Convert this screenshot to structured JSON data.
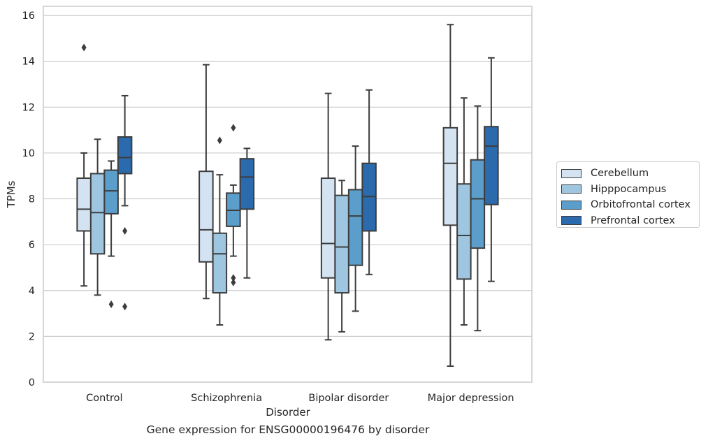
{
  "chart_data": {
    "type": "box",
    "title": "",
    "xlabel": "Disorder",
    "ylabel": "TPMs",
    "caption": "Gene expression for ENSG00000196476 by disorder",
    "ylim": [
      0,
      16.4
    ],
    "yticks": [
      0,
      2,
      4,
      6,
      8,
      10,
      12,
      14,
      16
    ],
    "grid": "horizontal",
    "legend_position": "right",
    "categories": [
      "Control",
      "Schizophrenia",
      "Bipolar disorder",
      "Major depression"
    ],
    "series": [
      {
        "name": "Cerebellum",
        "color": "#d3e3f2",
        "boxes": [
          {
            "whisker_low": 4.2,
            "q1": 6.6,
            "median": 7.55,
            "q3": 8.9,
            "whisker_high": 10.0,
            "outliers": [
              14.6
            ]
          },
          {
            "whisker_low": 3.65,
            "q1": 5.25,
            "median": 6.65,
            "q3": 9.2,
            "whisker_high": 13.85,
            "outliers": []
          },
          {
            "whisker_low": 1.85,
            "q1": 4.55,
            "median": 6.05,
            "q3": 8.9,
            "whisker_high": 12.6,
            "outliers": []
          },
          {
            "whisker_low": 0.7,
            "q1": 6.85,
            "median": 9.55,
            "q3": 11.1,
            "whisker_high": 15.6,
            "outliers": []
          }
        ]
      },
      {
        "name": "Hipppocampus",
        "color": "#9fc6e0",
        "boxes": [
          {
            "whisker_low": 3.8,
            "q1": 5.6,
            "median": 7.4,
            "q3": 9.1,
            "whisker_high": 10.6,
            "outliers": []
          },
          {
            "whisker_low": 2.5,
            "q1": 3.9,
            "median": 5.6,
            "q3": 6.5,
            "whisker_high": 9.05,
            "outliers": [
              10.55
            ]
          },
          {
            "whisker_low": 2.2,
            "q1": 3.9,
            "median": 5.9,
            "q3": 8.15,
            "whisker_high": 8.8,
            "outliers": []
          },
          {
            "whisker_low": 2.5,
            "q1": 4.5,
            "median": 6.4,
            "q3": 8.65,
            "whisker_high": 12.4,
            "outliers": []
          }
        ]
      },
      {
        "name": "Orbitofrontal cortex",
        "color": "#5c9ecb",
        "boxes": [
          {
            "whisker_low": 5.5,
            "q1": 7.35,
            "median": 8.35,
            "q3": 9.25,
            "whisker_high": 9.65,
            "outliers": [
              3.4
            ]
          },
          {
            "whisker_low": 5.5,
            "q1": 6.8,
            "median": 7.5,
            "q3": 8.25,
            "whisker_high": 8.6,
            "outliers": [
              11.1,
              4.55,
              4.35
            ]
          },
          {
            "whisker_low": 3.1,
            "q1": 5.1,
            "median": 7.25,
            "q3": 8.4,
            "whisker_high": 10.3,
            "outliers": []
          },
          {
            "whisker_low": 2.25,
            "q1": 5.85,
            "median": 8.0,
            "q3": 9.7,
            "whisker_high": 12.05,
            "outliers": []
          }
        ]
      },
      {
        "name": "Prefrontal cortex",
        "color": "#2a6aad",
        "boxes": [
          {
            "whisker_low": 7.7,
            "q1": 9.1,
            "median": 9.8,
            "q3": 10.7,
            "whisker_high": 12.5,
            "outliers": [
              6.6,
              3.3
            ]
          },
          {
            "whisker_low": 4.55,
            "q1": 7.55,
            "median": 8.95,
            "q3": 9.75,
            "whisker_high": 10.2,
            "outliers": []
          },
          {
            "whisker_low": 4.7,
            "q1": 6.6,
            "median": 8.1,
            "q3": 9.55,
            "whisker_high": 12.75,
            "outliers": []
          },
          {
            "whisker_low": 4.4,
            "q1": 7.75,
            "median": 10.3,
            "q3": 11.15,
            "whisker_high": 14.15,
            "outliers": []
          }
        ]
      }
    ]
  }
}
